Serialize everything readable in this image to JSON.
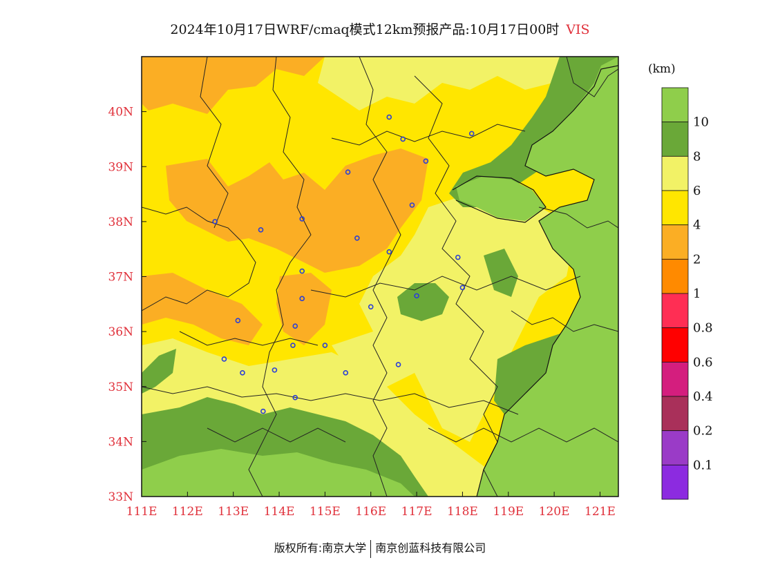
{
  "title": {
    "main": "2024年10月17日WRF/cmaq模式12km预报产品:10月17日00时",
    "variable": "VIS"
  },
  "units": "(km)",
  "footer": {
    "left": "版权所有:南京大学",
    "right": "南京创蓝科技有限公司"
  },
  "map": {
    "lon_range": [
      111,
      121.4
    ],
    "lat_range": [
      33,
      41
    ],
    "lon_ticks": [
      "111E",
      "112E",
      "113E",
      "114E",
      "115E",
      "116E",
      "117E",
      "118E",
      "119E",
      "120E",
      "121E"
    ],
    "lat_ticks": [
      "33N",
      "34N",
      "35N",
      "36N",
      "37N",
      "38N",
      "39N",
      "40N"
    ],
    "cities": [
      {
        "lon": 116.4,
        "lat": 39.9
      },
      {
        "lon": 116.7,
        "lat": 39.5
      },
      {
        "lon": 117.2,
        "lat": 39.1
      },
      {
        "lon": 118.2,
        "lat": 39.6
      },
      {
        "lon": 115.5,
        "lat": 38.9
      },
      {
        "lon": 116.9,
        "lat": 38.3
      },
      {
        "lon": 112.6,
        "lat": 38.0
      },
      {
        "lon": 113.6,
        "lat": 37.85
      },
      {
        "lon": 114.5,
        "lat": 38.05
      },
      {
        "lon": 115.7,
        "lat": 37.7
      },
      {
        "lon": 116.4,
        "lat": 37.45
      },
      {
        "lon": 117.9,
        "lat": 37.35
      },
      {
        "lon": 114.5,
        "lat": 37.1
      },
      {
        "lon": 114.5,
        "lat": 36.6
      },
      {
        "lon": 116.0,
        "lat": 36.45
      },
      {
        "lon": 117.0,
        "lat": 36.65
      },
      {
        "lon": 118.0,
        "lat": 36.8
      },
      {
        "lon": 113.1,
        "lat": 36.2
      },
      {
        "lon": 114.35,
        "lat": 36.1
      },
      {
        "lon": 114.3,
        "lat": 35.75
      },
      {
        "lon": 115.0,
        "lat": 35.75
      },
      {
        "lon": 112.8,
        "lat": 35.5
      },
      {
        "lon": 113.2,
        "lat": 35.25
      },
      {
        "lon": 113.9,
        "lat": 35.3
      },
      {
        "lon": 115.45,
        "lat": 35.25
      },
      {
        "lon": 116.6,
        "lat": 35.4
      },
      {
        "lon": 114.35,
        "lat": 34.8
      },
      {
        "lon": 113.65,
        "lat": 34.55
      }
    ]
  },
  "colorbar": {
    "labels": [
      "10",
      "8",
      "6",
      "4",
      "2",
      "1",
      "0.8",
      "0.6",
      "0.4",
      "0.2",
      "0.1"
    ],
    "colors": [
      "#8fce4b",
      "#6aa838",
      "#f2f266",
      "#ffe600",
      "#fbae24",
      "#ff8a00",
      "#ff2e54",
      "#ff0000",
      "#d41e7e",
      "#a9305a",
      "#9a3bc7",
      "#8c2be0"
    ]
  },
  "colors": {
    "accent_red": "#e0303a",
    "ocean_green": "#8fce4b",
    "dark_green": "#6aa838",
    "light_yellow": "#f2f266",
    "yellow": "#ffe600",
    "orange": "#fbae24"
  }
}
